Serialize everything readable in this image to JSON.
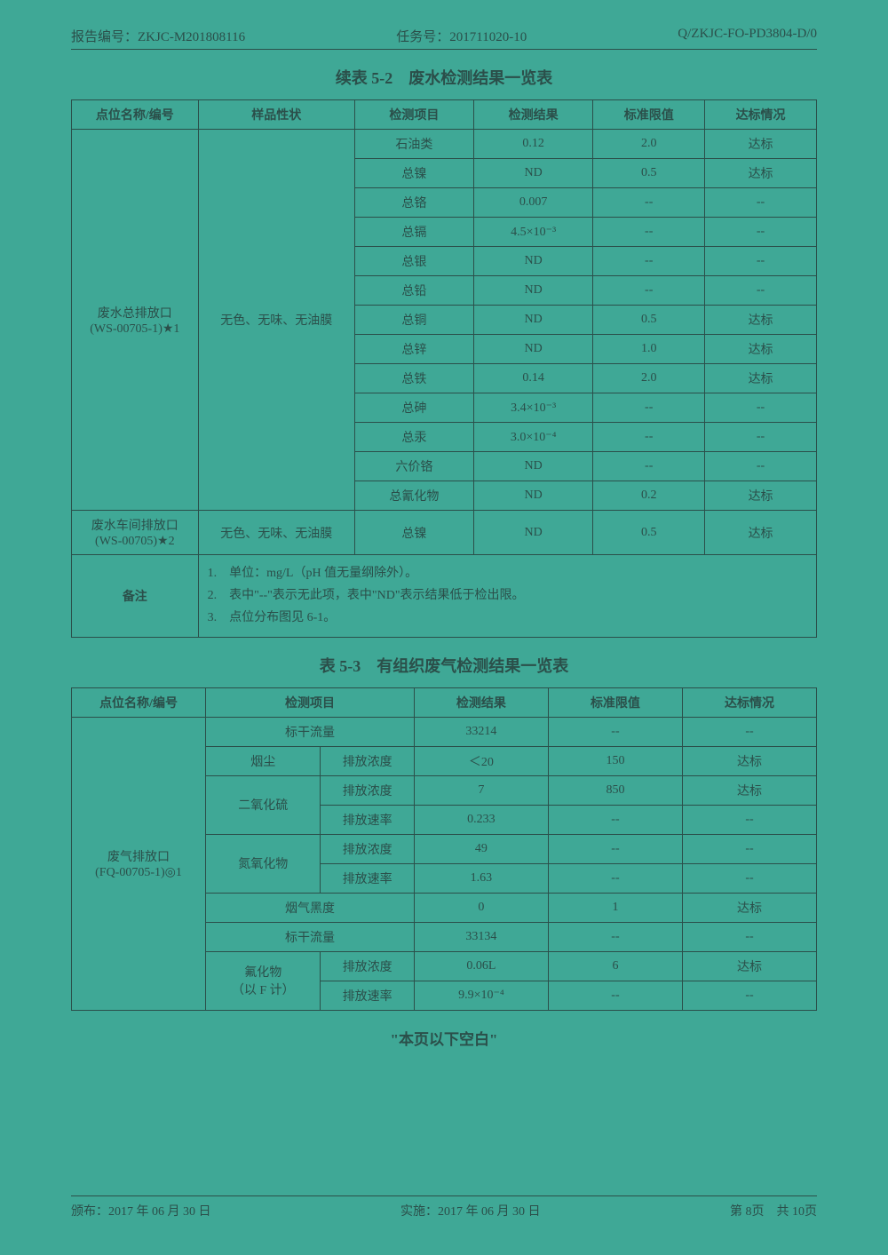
{
  "header": {
    "report_no_label": "报告编号：",
    "report_no": "ZKJC-M201808116",
    "task_no_label": "任务号：",
    "task_no": "201711020-10",
    "doc_code": "Q/ZKJC-FO-PD3804-D/0"
  },
  "table52": {
    "title": "续表 5-2　废水检测结果一览表",
    "headers": [
      "点位名称/编号",
      "样品性状",
      "检测项目",
      "检测结果",
      "标准限值",
      "达标情况"
    ],
    "location1": "废水总排放口\n(WS-00705-1)★1",
    "appearance1": "无色、无味、无油膜",
    "rows1": [
      {
        "item": "石油类",
        "result": "0.12",
        "limit": "2.0",
        "status": "达标"
      },
      {
        "item": "总镍",
        "result": "ND",
        "limit": "0.5",
        "status": "达标"
      },
      {
        "item": "总铬",
        "result": "0.007",
        "limit": "--",
        "status": "--"
      },
      {
        "item": "总镉",
        "result": "4.5×10⁻³",
        "limit": "--",
        "status": "--"
      },
      {
        "item": "总银",
        "result": "ND",
        "limit": "--",
        "status": "--"
      },
      {
        "item": "总铅",
        "result": "ND",
        "limit": "--",
        "status": "--"
      },
      {
        "item": "总铜",
        "result": "ND",
        "limit": "0.5",
        "status": "达标"
      },
      {
        "item": "总锌",
        "result": "ND",
        "limit": "1.0",
        "status": "达标"
      },
      {
        "item": "总铁",
        "result": "0.14",
        "limit": "2.0",
        "status": "达标"
      },
      {
        "item": "总砷",
        "result": "3.4×10⁻³",
        "limit": "--",
        "status": "--"
      },
      {
        "item": "总汞",
        "result": "3.0×10⁻⁴",
        "limit": "--",
        "status": "--"
      },
      {
        "item": "六价铬",
        "result": "ND",
        "limit": "--",
        "status": "--"
      },
      {
        "item": "总氰化物",
        "result": "ND",
        "limit": "0.2",
        "status": "达标"
      }
    ],
    "location2": "废水车间排放口\n(WS-00705)★2",
    "appearance2": "无色、无味、无油膜",
    "row2": {
      "item": "总镍",
      "result": "ND",
      "limit": "0.5",
      "status": "达标"
    },
    "remark_label": "备注",
    "remark_lines": [
      "1.　单位：mg/L（pH 值无量纲除外）。",
      "2.　表中\"--\"表示无此项，表中\"ND\"表示结果低于检出限。",
      "3.　点位分布图见 6-1。"
    ]
  },
  "table53": {
    "title": "表 5-3　有组织废气检测结果一览表",
    "headers": [
      "点位名称/编号",
      "检测项目",
      "检测结果",
      "标准限值",
      "达标情况"
    ],
    "location": "废气排放口\n(FQ-00705-1)◎1",
    "rows": [
      {
        "item_span": 2,
        "item": "标干流量",
        "sub": "",
        "result": "33214",
        "limit": "--",
        "status": "--"
      },
      {
        "item_span": 1,
        "item": "烟尘",
        "sub": "排放浓度",
        "result": "＜20",
        "limit": "150",
        "status": "达标"
      },
      {
        "item_span": 1,
        "item": "二氧化硫",
        "sub": "排放浓度",
        "result": "7",
        "limit": "850",
        "status": "达标",
        "rowspan": 2
      },
      {
        "item_span": 0,
        "item": "",
        "sub": "排放速率",
        "result": "0.233",
        "limit": "--",
        "status": "--"
      },
      {
        "item_span": 1,
        "item": "氮氧化物",
        "sub": "排放浓度",
        "result": "49",
        "limit": "--",
        "status": "--",
        "rowspan": 2
      },
      {
        "item_span": 0,
        "item": "",
        "sub": "排放速率",
        "result": "1.63",
        "limit": "--",
        "status": "--"
      },
      {
        "item_span": 2,
        "item": "烟气黑度",
        "sub": "",
        "result": "0",
        "limit": "1",
        "status": "达标"
      },
      {
        "item_span": 2,
        "item": "标干流量",
        "sub": "",
        "result": "33134",
        "limit": "--",
        "status": "--"
      },
      {
        "item_span": 1,
        "item": "氟化物\n（以 F 计）",
        "sub": "排放浓度",
        "result": "0.06L",
        "limit": "6",
        "status": "达标",
        "rowspan": 2
      },
      {
        "item_span": 0,
        "item": "",
        "sub": "排放速率",
        "result": "9.9×10⁻⁴",
        "limit": "--",
        "status": "--"
      }
    ]
  },
  "blank_note": "\"本页以下空白\"",
  "footer": {
    "issue_label": "颁布：",
    "issue_date": "2017 年 06 月 30 日",
    "impl_label": "实施：",
    "impl_date": "2017 年 06 月 30 日",
    "page_label": "第 8页　共 10页"
  },
  "colors": {
    "bg": "#3fa896",
    "text": "#2b4f4a",
    "border": "#2b4f4a"
  }
}
